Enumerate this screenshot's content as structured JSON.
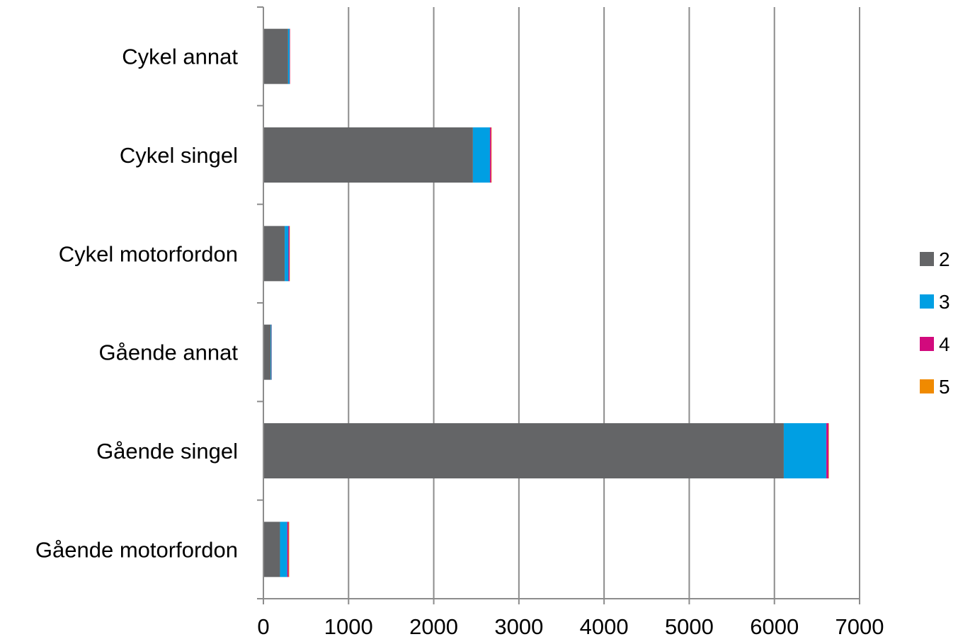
{
  "chart_data": {
    "type": "bar",
    "orientation": "horizontal",
    "stacked": true,
    "categories": [
      "Cykel annat",
      "Cykel singel",
      "Cykel motorfordon",
      "Gående annat",
      "Gående singel",
      "Gående motorfordon"
    ],
    "series": [
      {
        "name": "2",
        "color": "#646567",
        "values": [
          290,
          2460,
          250,
          85,
          6110,
          195
        ]
      },
      {
        "name": "3",
        "color": "#009fe3",
        "values": [
          18,
          200,
          45,
          10,
          500,
          85
        ]
      },
      {
        "name": "4",
        "color": "#d20a7d",
        "values": [
          4,
          15,
          12,
          3,
          25,
          15
        ]
      },
      {
        "name": "5",
        "color": "#f08a00",
        "values": [
          1,
          5,
          3,
          1,
          5,
          8
        ]
      }
    ],
    "x_ticks": [
      "0",
      "1000",
      "2000",
      "3000",
      "4000",
      "5000",
      "6000",
      "7000"
    ],
    "xlim": [
      0,
      7000
    ],
    "grid": true,
    "legend": "right"
  }
}
